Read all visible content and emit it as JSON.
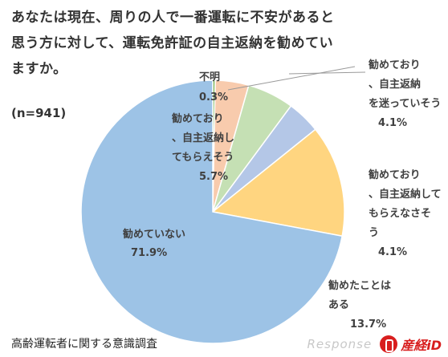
{
  "page": {
    "title": "あなたは現在、周りの人で一番運転に不安があると\n思う方に対して、運転免許証の自主返納を勧めてい\nますか。",
    "n_label": "(n=941)",
    "source": "高齢運転者に関する意識調査",
    "watermark": {
      "text": "Response",
      "brand": "産経iD"
    }
  },
  "chart_data": {
    "type": "pie",
    "title": "",
    "slices": [
      {
        "label": "不明",
        "value": 0.3,
        "display": "0.3%",
        "color": "#70ad47"
      },
      {
        "label": "勧めており、自主返納を迷っていそう",
        "value": 4.1,
        "display": "4.1%",
        "color": "#f8cbad"
      },
      {
        "label": "勧めており、自主返納してもらえそう",
        "value": 5.7,
        "display": "5.7%",
        "color": "#c5e0b4"
      },
      {
        "label": "勧めており、自主返納してもらえなさそう",
        "value": 4.1,
        "display": "4.1%",
        "color": "#b4c7e7"
      },
      {
        "label": "勧めたことはある",
        "value": 13.7,
        "display": "13.7%",
        "color": "#ffd580"
      },
      {
        "label": "勧めていない",
        "value": 71.9,
        "display": "71.9%",
        "color": "#9dc3e6"
      }
    ]
  }
}
